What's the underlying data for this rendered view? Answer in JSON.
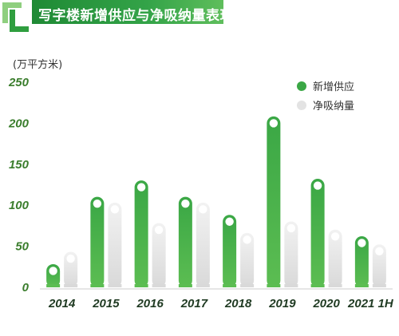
{
  "header": {
    "title": "写字楼新增供应与净吸纳量表现"
  },
  "unit_label": "(万平方米)",
  "legend": [
    {
      "name": "新增供应",
      "color": "#3aa745"
    },
    {
      "name": "净吸纳量",
      "color": "#e6e6e6"
    }
  ],
  "chart_data": {
    "type": "bar",
    "title": "写字楼新增供应与净吸纳量表现",
    "ylabel": "(万平方米)",
    "xlabel": "",
    "categories": [
      "2014",
      "2015",
      "2016",
      "2017",
      "2018",
      "2019",
      "2020",
      "2021 1H"
    ],
    "yticks": [
      0,
      50,
      100,
      150,
      200,
      250
    ],
    "ylim": [
      0,
      250
    ],
    "grid": false,
    "legend_position": "top-right",
    "series": [
      {
        "name": "新增供应",
        "color": "#3aa745",
        "values": [
          20,
          102,
          122,
          102,
          80,
          200,
          124,
          54
        ]
      },
      {
        "name": "净吸纳量",
        "color": "#e6e6e6",
        "values": [
          35,
          95,
          70,
          95,
          58,
          72,
          62,
          44
        ]
      }
    ]
  }
}
